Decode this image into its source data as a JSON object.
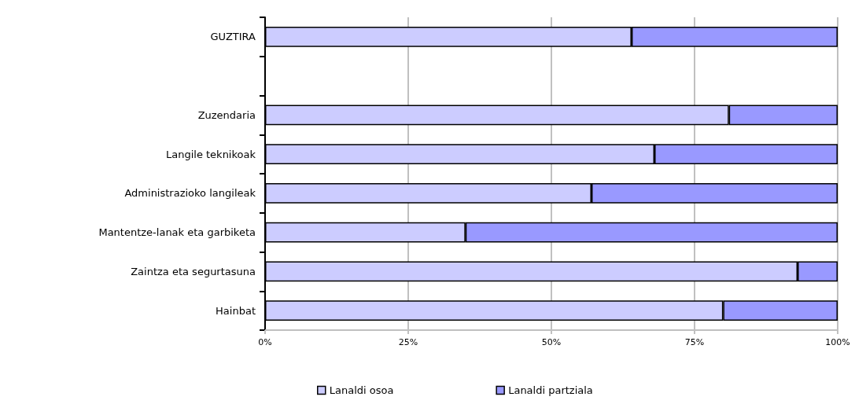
{
  "chart_data": {
    "type": "bar",
    "orientation": "horizontal",
    "stacked": true,
    "categories": [
      "GUZTIRA",
      null,
      "Zuzendaria",
      "Langile teknikoak",
      "Administrazioko langileak",
      "Mantentze-lanak eta garbiketa",
      "Zaintza eta segurtasuna",
      "Hainbat"
    ],
    "series": [
      {
        "name": "Lanaldi osoa",
        "color": "#ccccff",
        "values": [
          64,
          null,
          81,
          68,
          57,
          35,
          93,
          80
        ]
      },
      {
        "name": "Lanaldi partziala",
        "color": "#9999ff",
        "values": [
          36,
          null,
          19,
          32,
          43,
          65,
          7,
          20
        ]
      }
    ],
    "xlim": [
      0,
      100
    ],
    "xticks": [
      {
        "value": 0,
        "label": "0%"
      },
      {
        "value": 25,
        "label": "25%"
      },
      {
        "value": 50,
        "label": "50%"
      },
      {
        "value": 75,
        "label": "75%"
      },
      {
        "value": 100,
        "label": "100%"
      }
    ],
    "grid": "x",
    "legend": "bottom"
  }
}
